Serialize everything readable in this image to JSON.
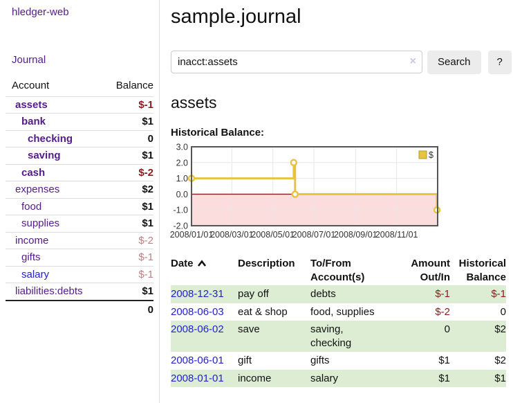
{
  "colors": {
    "accent_purple": "#551a8b",
    "link_blue": "#2222cc",
    "negative_strong": "#871c1c",
    "negative_soft": "#c07f7f",
    "stripe_green": "#ddedd4"
  },
  "sidebar": {
    "app_title": "hledger-web",
    "journal_link": "Journal",
    "accounts": {
      "col_account": "Account",
      "col_balance": "Balance",
      "rows": [
        {
          "name": "assets",
          "indent": 0,
          "selected": true,
          "balance": "$-1"
        },
        {
          "name": "bank",
          "indent": 1,
          "selected": true,
          "balance": "$1"
        },
        {
          "name": "checking",
          "indent": 2,
          "selected": true,
          "balance": "0"
        },
        {
          "name": "saving",
          "indent": 2,
          "selected": true,
          "balance": "$1"
        },
        {
          "name": "cash",
          "indent": 1,
          "selected": true,
          "balance": "$-2"
        },
        {
          "name": "expenses",
          "indent": 0,
          "selected": false,
          "balance": "$2"
        },
        {
          "name": "food",
          "indent": 1,
          "selected": false,
          "balance": "$1"
        },
        {
          "name": "supplies",
          "indent": 1,
          "selected": false,
          "balance": "$1"
        },
        {
          "name": "income",
          "indent": 0,
          "selected": false,
          "balance": "$-2"
        },
        {
          "name": "gifts",
          "indent": 1,
          "selected": false,
          "balance": "$-1"
        },
        {
          "name": "salary",
          "indent": 1,
          "selected": false,
          "balance": "$-1",
          "link_color": "blue"
        },
        {
          "name": "liabilities:debts",
          "indent": 0,
          "selected": false,
          "balance": "$1"
        }
      ],
      "total": "0"
    }
  },
  "main": {
    "title": "sample.journal",
    "search": {
      "value": "inacct:assets",
      "clear_icon": "×",
      "search_button": "Search",
      "help_button": "?"
    },
    "account_heading": "assets",
    "chart_title": "Historical Balance:"
  },
  "chart_data": {
    "type": "line",
    "title": "Historical Balance:",
    "x_range": [
      "2008-01-01",
      "2009-01-01"
    ],
    "ylim": [
      -2,
      3
    ],
    "grid": true,
    "y_ticks": [
      {
        "value": 3,
        "label": "3.0"
      },
      {
        "value": 2,
        "label": "2.0"
      },
      {
        "value": 1,
        "label": "1.0"
      },
      {
        "value": 0,
        "label": "0.0"
      },
      {
        "value": -1,
        "label": "-1.0"
      },
      {
        "value": -2,
        "label": "-2.0"
      }
    ],
    "x_ticks": [
      {
        "date": "2008-01-01",
        "label": "2008/01/01"
      },
      {
        "date": "2008-03-01",
        "label": "2008/03/01"
      },
      {
        "date": "2008-05-01",
        "label": "2008/05/01"
      },
      {
        "date": "2008-07-01",
        "label": "2008/07/01"
      },
      {
        "date": "2008-09-01",
        "label": "2008/09/01"
      },
      {
        "date": "2008-11-01",
        "label": "2008/11/01"
      }
    ],
    "series": [
      {
        "name": "$",
        "style": "step-line",
        "color": "#e8c340",
        "points": [
          {
            "date": "2008-01-01",
            "value": 1
          },
          {
            "date": "2008-06-01",
            "value": 2
          },
          {
            "date": "2008-06-03",
            "value": 0
          },
          {
            "date": "2008-12-31",
            "value": -1
          }
        ]
      }
    ],
    "legend": {
      "label": "$",
      "position": "top-right",
      "swatch_color": "#e8c340"
    },
    "style_colors": {
      "negative_region_fill": "#fbdddd",
      "zero_line": "#8b1d1d",
      "grid": "#e7e7e7",
      "plot_border": "#555555",
      "point_fill": "#ffffff",
      "tick_text": "#333333"
    }
  },
  "register": {
    "headers": {
      "date": "Date",
      "description": "Description",
      "accounts": "To/From Account(s)",
      "amount": "Amount Out/In",
      "balance": "Historical Balance"
    },
    "rows": [
      {
        "date": "2008-12-31",
        "description": "pay off",
        "accounts": "debts",
        "amount": "$-1",
        "balance": "$-1"
      },
      {
        "date": "2008-06-03",
        "description": "eat & shop",
        "accounts": "food, supplies",
        "amount": "$-2",
        "balance": "0"
      },
      {
        "date": "2008-06-02",
        "description": "save",
        "accounts": "saving, checking",
        "amount": "0",
        "balance": "$2"
      },
      {
        "date": "2008-06-01",
        "description": "gift",
        "accounts": "gifts",
        "amount": "$1",
        "balance": "$2"
      },
      {
        "date": "2008-01-01",
        "description": "income",
        "accounts": "salary",
        "amount": "$1",
        "balance": "$1"
      }
    ]
  }
}
